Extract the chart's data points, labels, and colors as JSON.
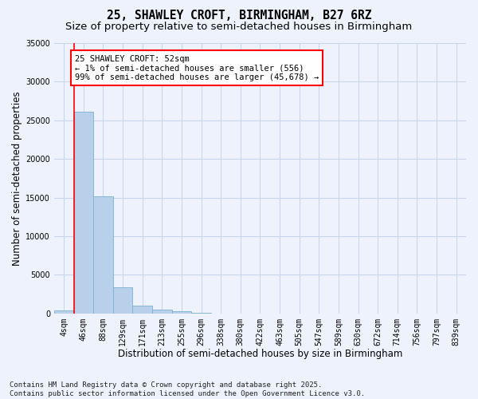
{
  "title": "25, SHAWLEY CROFT, BIRMINGHAM, B27 6RZ",
  "subtitle": "Size of property relative to semi-detached houses in Birmingham",
  "xlabel": "Distribution of semi-detached houses by size in Birmingham",
  "ylabel": "Number of semi-detached properties",
  "categories": [
    "4sqm",
    "46sqm",
    "88sqm",
    "129sqm",
    "171sqm",
    "213sqm",
    "255sqm",
    "296sqm",
    "338sqm",
    "380sqm",
    "422sqm",
    "463sqm",
    "505sqm",
    "547sqm",
    "589sqm",
    "630sqm",
    "672sqm",
    "714sqm",
    "756sqm",
    "797sqm",
    "839sqm"
  ],
  "values": [
    400,
    26100,
    15200,
    3350,
    1050,
    500,
    320,
    120,
    0,
    0,
    0,
    0,
    0,
    0,
    0,
    0,
    0,
    0,
    0,
    0,
    0
  ],
  "bar_color": "#b8d0ea",
  "bar_edge_color": "#7aafd4",
  "vline_color": "red",
  "vline_pos": 0.5,
  "annotation_text": "25 SHAWLEY CROFT: 52sqm\n← 1% of semi-detached houses are smaller (556)\n99% of semi-detached houses are larger (45,678) →",
  "annotation_box_color": "white",
  "annotation_box_edge": "red",
  "ylim": [
    0,
    35000
  ],
  "yticks": [
    0,
    5000,
    10000,
    15000,
    20000,
    25000,
    30000,
    35000
  ],
  "ytick_labels": [
    "0",
    "5000",
    "10000",
    "15000",
    "20000",
    "25000",
    "30000",
    "35000"
  ],
  "bg_color": "#eef2fc",
  "grid_color": "#c5d5ee",
  "footer": "Contains HM Land Registry data © Crown copyright and database right 2025.\nContains public sector information licensed under the Open Government Licence v3.0.",
  "title_fontsize": 10.5,
  "subtitle_fontsize": 9.5,
  "axis_label_fontsize": 8.5,
  "tick_fontsize": 7,
  "annot_fontsize": 7.5,
  "footer_fontsize": 6.5
}
